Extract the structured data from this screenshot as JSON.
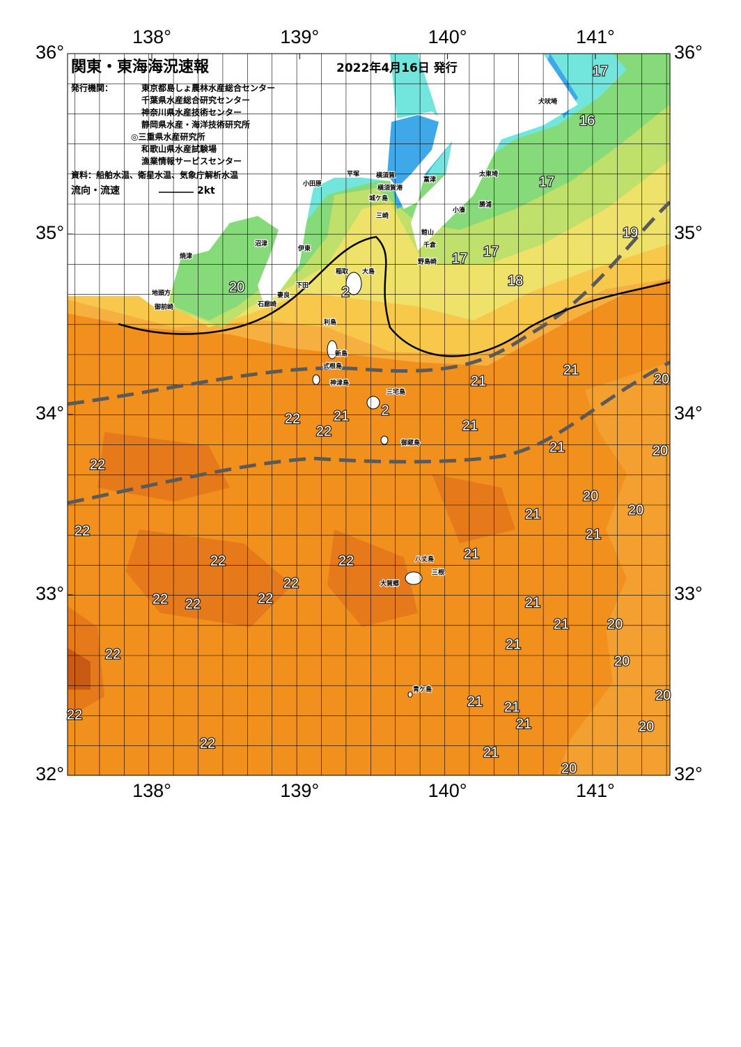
{
  "map": {
    "title": "関東・東海海況速報",
    "date": "2022年4月16日 発行",
    "publisher_label": "発行機関：",
    "publishers": [
      "東京都島しょ農林水産総合センター",
      "千葉県水産総合研究センター",
      "神奈川県水産技術センター",
      "静岡県水産・海洋技術研究所",
      "◎三重県水産研究所",
      "和歌山県水産試験場",
      "漁業情報サービスセンター"
    ],
    "source": "資料：船舶水温、衛星水温、気象庁解析水温",
    "legend_label": "流向・流速",
    "legend_scale": "2kt",
    "xticks": [
      {
        "value": 138,
        "label": "138°"
      },
      {
        "value": 139,
        "label": "139°"
      },
      {
        "value": 140,
        "label": "140°"
      },
      {
        "value": 141,
        "label": "141°"
      }
    ],
    "yticks": [
      {
        "value": 36,
        "label": "36°"
      },
      {
        "value": 35,
        "label": "35°"
      },
      {
        "value": 34,
        "label": "34°"
      },
      {
        "value": 33,
        "label": "33°"
      },
      {
        "value": 32,
        "label": "32°"
      }
    ],
    "place_names": [
      "犬吠埼",
      "太東埼",
      "勝浦",
      "小湊",
      "館山",
      "千倉",
      "野島崎",
      "富津",
      "横須賀",
      "城ケ島",
      "三崎",
      "平塚",
      "横須賀港",
      "小田原",
      "伊東",
      "稲取",
      "下田",
      "石廊崎",
      "妻良",
      "御前崎",
      "地頭方",
      "焼津",
      "沼津",
      "大島",
      "利島",
      "新島",
      "式根島",
      "神津島",
      "三宅島",
      "御蔵島",
      "八丈島",
      "三根",
      "大賀郷",
      "青ケ島"
    ],
    "temperature_labels": [
      "17",
      "16",
      "17",
      "19",
      "17",
      "17",
      "18",
      "20",
      "2",
      "21",
      "21",
      "20",
      "22",
      "22",
      "21",
      "2",
      "21",
      "21",
      "20",
      "22",
      "20",
      "20",
      "21",
      "21",
      "22",
      "22",
      "22",
      "21",
      "22",
      "22",
      "22",
      "22",
      "21",
      "21",
      "20",
      "21",
      "20",
      "22",
      "20",
      "21",
      "21",
      "21",
      "20",
      "22",
      "22",
      "21",
      "20"
    ]
  }
}
